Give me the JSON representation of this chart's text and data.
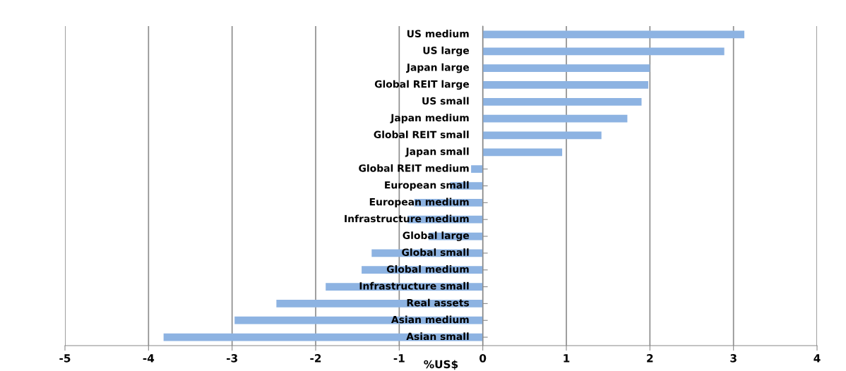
{
  "chart_data": {
    "type": "bar",
    "orientation": "horizontal",
    "xlabel": "%US$",
    "categories": [
      "US medium",
      "US large",
      "Japan large",
      "Global REIT large",
      "US small",
      "Japan medium",
      "Global REIT small",
      "Japan small",
      "Global REIT medium",
      "European small",
      "European medium",
      "Infrastructure medium",
      "Global large",
      "Global small",
      "Global medium",
      "Infrastructure small",
      "Real assets",
      "Asian medium",
      "Asian small"
    ],
    "values": [
      3.13,
      2.89,
      2.0,
      1.98,
      1.9,
      1.73,
      1.42,
      0.95,
      -0.14,
      -0.39,
      -0.82,
      -0.9,
      -0.65,
      -1.33,
      -1.45,
      -1.88,
      -2.47,
      -2.97,
      -3.82
    ],
    "color": "#8db3e2",
    "xlim": [
      -5,
      4
    ],
    "xticks": [
      -5,
      -4,
      -3,
      -2,
      -1,
      0,
      1,
      2,
      3,
      4
    ],
    "grid": "x",
    "legend": false
  }
}
